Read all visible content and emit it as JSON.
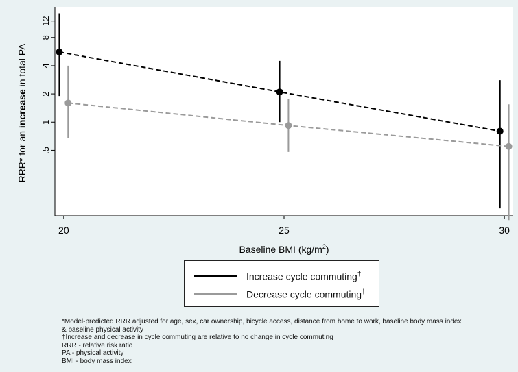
{
  "chart_data": {
    "type": "scatter",
    "ylabel_parts": [
      "RRR* for an ",
      "increase",
      " in total PA"
    ],
    "xlabel_text": "Baseline BMI (kg/m",
    "xlabel_sup": "2",
    "xlabel_close": ")",
    "y_scale": "log",
    "x_ticks": [
      {
        "value": 20,
        "label": "20"
      },
      {
        "value": 25,
        "label": "25"
      },
      {
        "value": 30,
        "label": "30"
      }
    ],
    "y_ticks": [
      {
        "value": 0.5,
        "label": ".5"
      },
      {
        "value": 1,
        "label": "1"
      },
      {
        "value": 2,
        "label": "2"
      },
      {
        "value": 4,
        "label": "4"
      },
      {
        "value": 8,
        "label": "8"
      },
      {
        "value": 12,
        "label": "12"
      }
    ],
    "xlim": [
      19.8,
      30.2
    ],
    "ylim": [
      0.1,
      17
    ],
    "grid": false,
    "legend_position": "bottom-center",
    "series": [
      {
        "name": "Increase cycle commuting",
        "name_sup": "†",
        "color": "#000000",
        "x": [
          19.9,
          24.9,
          29.9
        ],
        "y": [
          5.6,
          2.1,
          0.8
        ],
        "ci_low": [
          1.9,
          1.0,
          0.12
        ],
        "ci_high": [
          14.5,
          4.5,
          2.8
        ],
        "line": "dashed"
      },
      {
        "name": "Decrease cycle commuting",
        "name_sup": "†",
        "color": "#9a9a9a",
        "x": [
          20.1,
          25.1,
          30.1
        ],
        "y": [
          1.6,
          0.92,
          0.55
        ],
        "ci_low": [
          0.68,
          0.48,
          0.09
        ],
        "ci_high": [
          4.0,
          1.75,
          1.55
        ],
        "line": "dashed"
      }
    ]
  },
  "notes": [
    "*Model-predicted RRR adjusted for age, sex, car ownership, bicycle access, distance from home to work, baseline body mass index",
    "& baseline physical activity",
    "†Increase and decrease in cycle commuting are relative to no change in cycle commuting",
    "RRR - relative risk ratio",
    "PA - physical activity",
    "BMI - body mass index"
  ]
}
